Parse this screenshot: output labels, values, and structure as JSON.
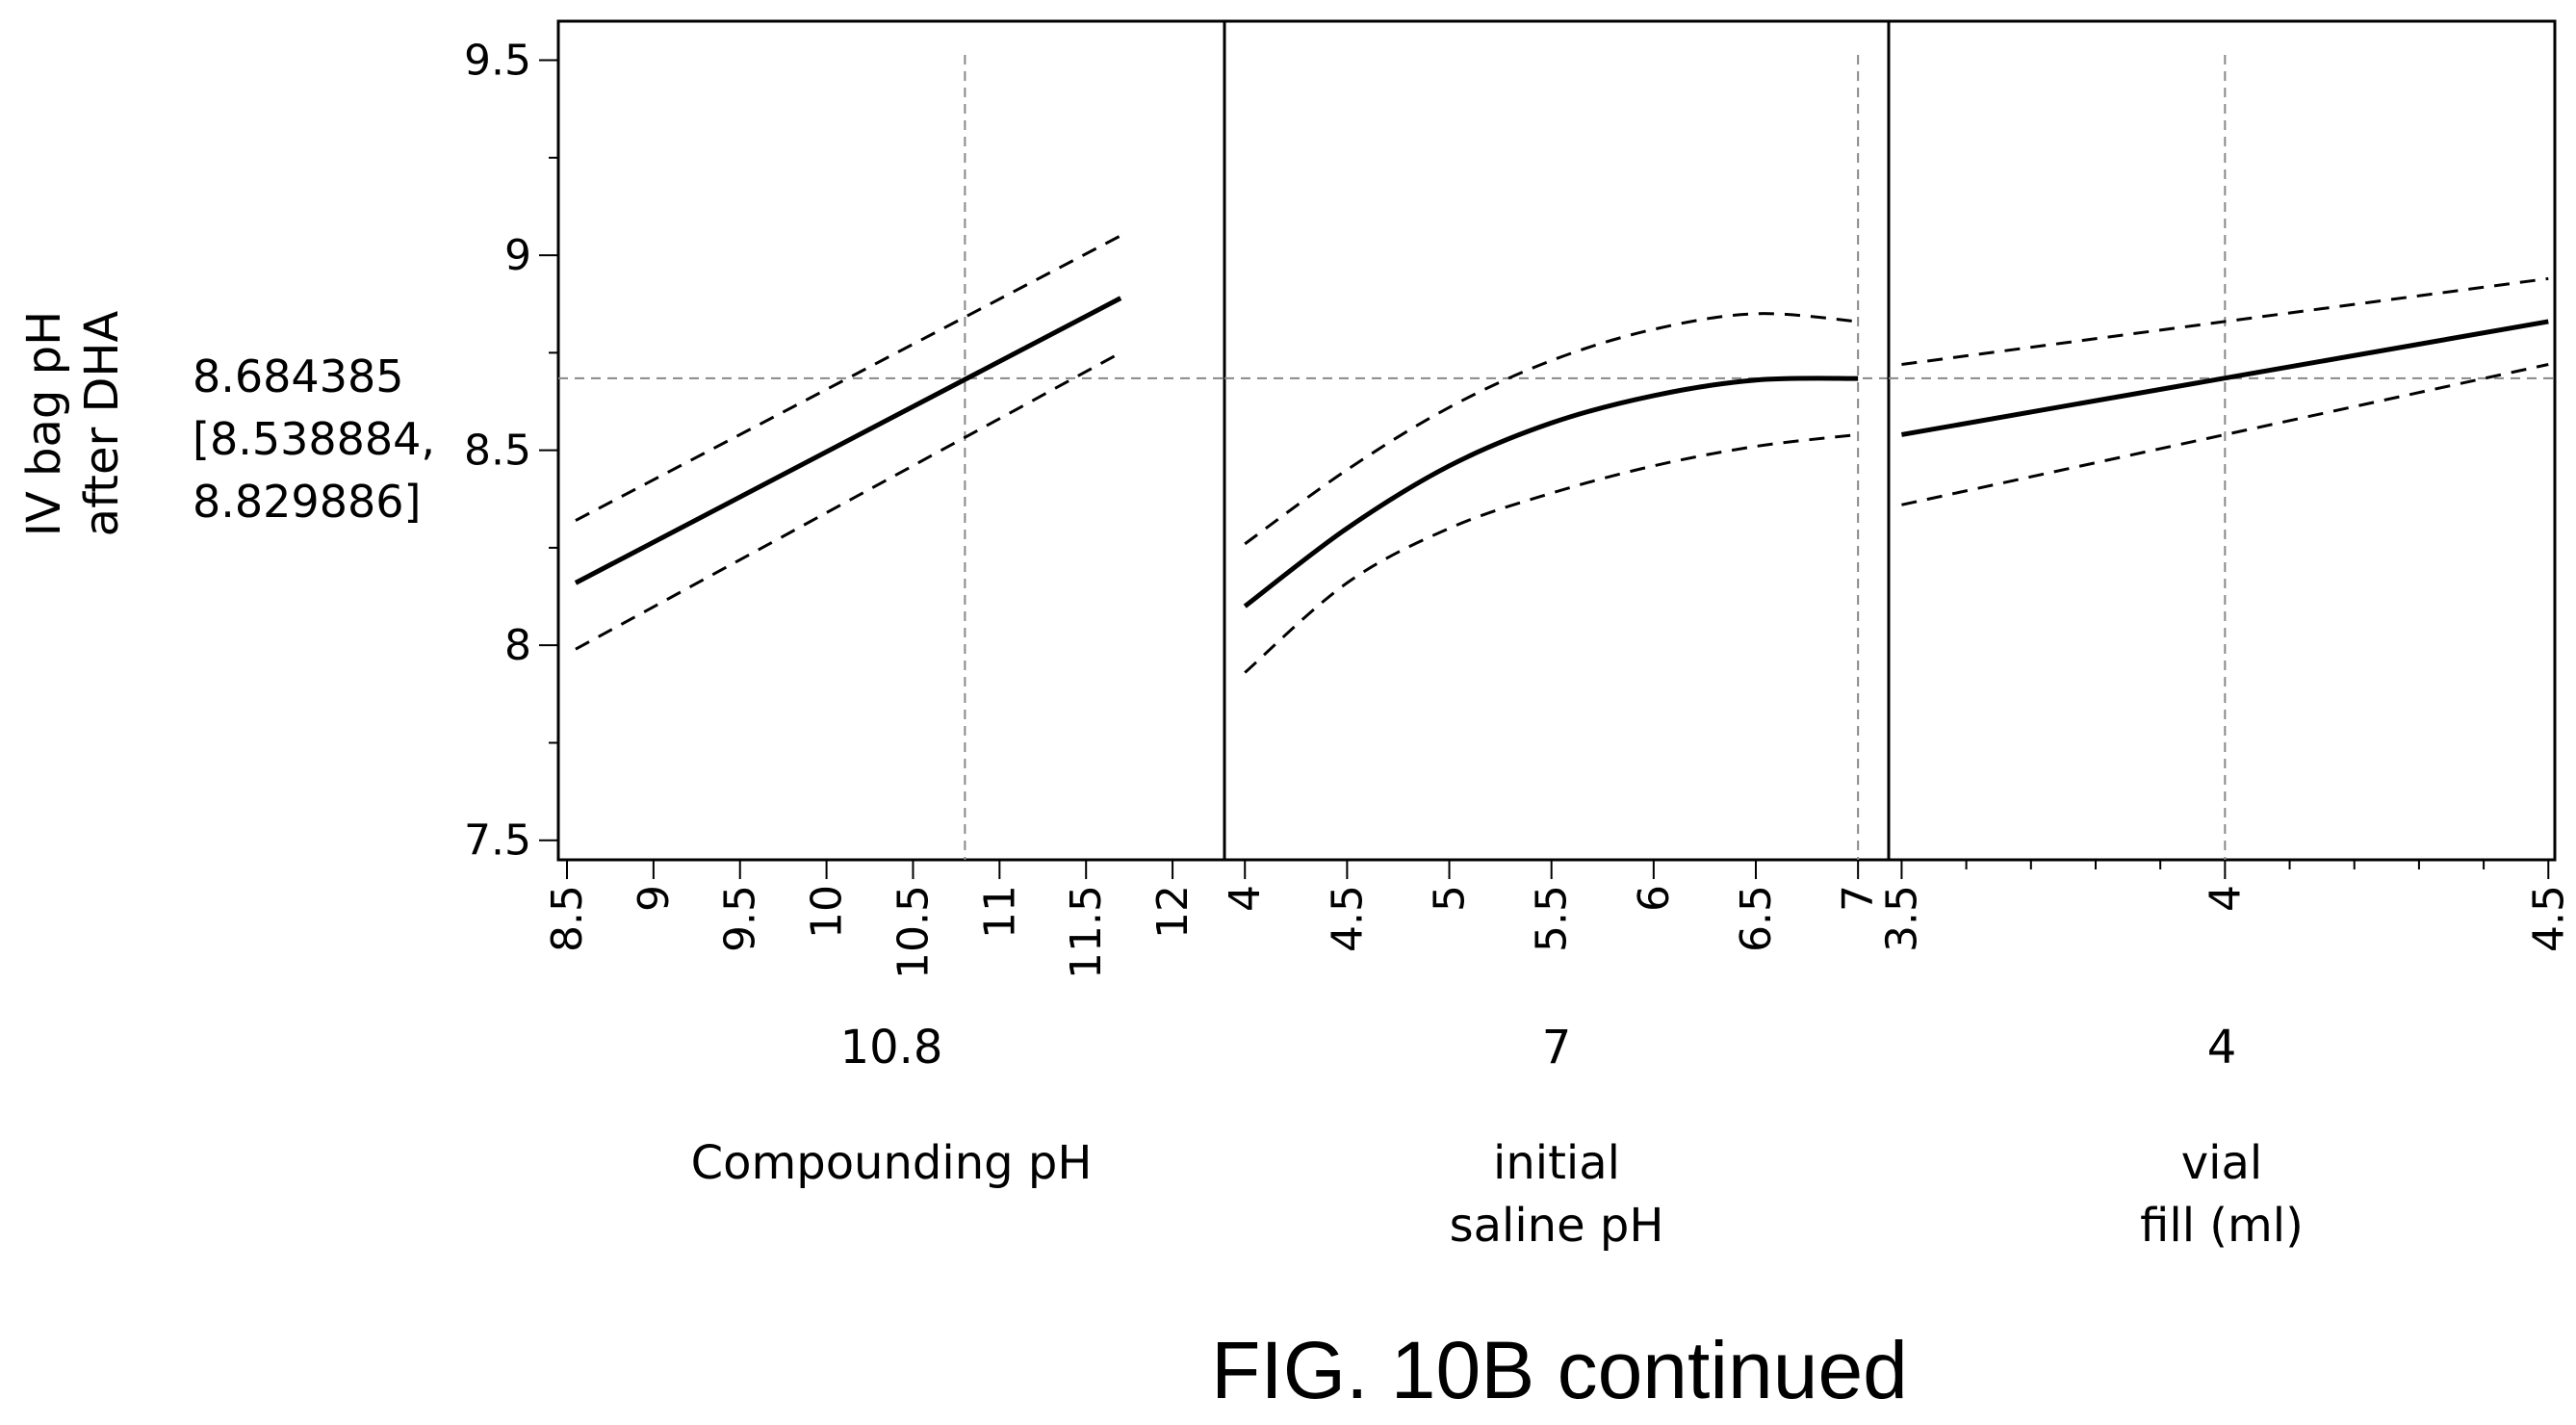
{
  "figure_caption": "FIG. 10B continued",
  "chart_data": {
    "type": "line",
    "response": {
      "label_lines": [
        "IV bag pH",
        "after DHA"
      ],
      "value": "8.684385",
      "ci_lines": [
        "[8.538884,",
        "8.829886]"
      ],
      "y_numeric": 8.684385,
      "ylim": [
        7.45,
        9.6
      ],
      "yticks": [
        7.5,
        8,
        8.5,
        9,
        9.5
      ],
      "ytick_labels": [
        "7.5",
        "8",
        "8.5",
        "9",
        "9.5"
      ]
    },
    "grid": false,
    "panels": [
      {
        "factor_label_lines": [
          "Compounding pH"
        ],
        "current_value": "10.8",
        "current_numeric": 10.8,
        "xlim": [
          8.45,
          12.3
        ],
        "xticks": [
          8.5,
          9,
          9.5,
          10,
          10.5,
          11,
          11.5,
          12
        ],
        "xtick_labels": [
          "8.5",
          "9",
          "9.5",
          "10",
          "10.5",
          "11",
          "11.5",
          "12"
        ],
        "series": [
          {
            "style": "solid",
            "x": [
              8.55,
              11.7
            ],
            "y": [
              8.16,
              8.89
            ]
          },
          {
            "style": "dashed",
            "x": [
              8.55,
              11.7
            ],
            "y": [
              8.32,
              9.05
            ]
          },
          {
            "style": "dashed",
            "x": [
              8.55,
              11.7
            ],
            "y": [
              7.99,
              8.75
            ]
          }
        ]
      },
      {
        "factor_label_lines": [
          "initial",
          "saline pH"
        ],
        "current_value": "7",
        "current_numeric": 7,
        "xlim": [
          3.9,
          7.15
        ],
        "xticks": [
          4,
          4.5,
          5,
          5.5,
          6,
          6.5,
          7
        ],
        "xtick_labels": [
          "4",
          "4.5",
          "5",
          "5.5",
          "6",
          "6.5",
          "7"
        ],
        "series": [
          {
            "style": "solid",
            "x": [
              4,
              4.5,
              5,
              5.5,
              6,
              6.5,
              7
            ],
            "y": [
              8.1,
              8.3,
              8.46,
              8.57,
              8.64,
              8.68,
              8.684
            ]
          },
          {
            "style": "dashed",
            "x": [
              4,
              4.5,
              5,
              5.5,
              6,
              6.5,
              7
            ],
            "y": [
              8.26,
              8.45,
              8.61,
              8.73,
              8.81,
              8.85,
              8.83
            ]
          },
          {
            "style": "dashed",
            "x": [
              4,
              4.5,
              5,
              5.5,
              6,
              6.5,
              7
            ],
            "y": [
              7.93,
              8.16,
              8.3,
              8.39,
              8.46,
              8.51,
              8.54
            ]
          }
        ]
      },
      {
        "factor_label_lines": [
          "vial",
          "fill (ml)"
        ],
        "current_value": "4",
        "current_numeric": 4,
        "xlim": [
          3.48,
          4.51
        ],
        "xticks": [
          3.5,
          4,
          4.5
        ],
        "xtick_labels": [
          "3.5",
          "4",
          "4.5"
        ],
        "minor_xticks": [
          3.6,
          3.7,
          3.8,
          3.9,
          4.1,
          4.2,
          4.3,
          4.4
        ],
        "series": [
          {
            "style": "solid",
            "x": [
              3.5,
              4.5
            ],
            "y": [
              8.54,
              8.83
            ]
          },
          {
            "style": "dashed",
            "x": [
              3.5,
              4.5
            ],
            "y": [
              8.72,
              8.94
            ]
          },
          {
            "style": "dashed",
            "x": [
              3.5,
              4.5
            ],
            "y": [
              8.36,
              8.72
            ]
          }
        ]
      }
    ]
  }
}
